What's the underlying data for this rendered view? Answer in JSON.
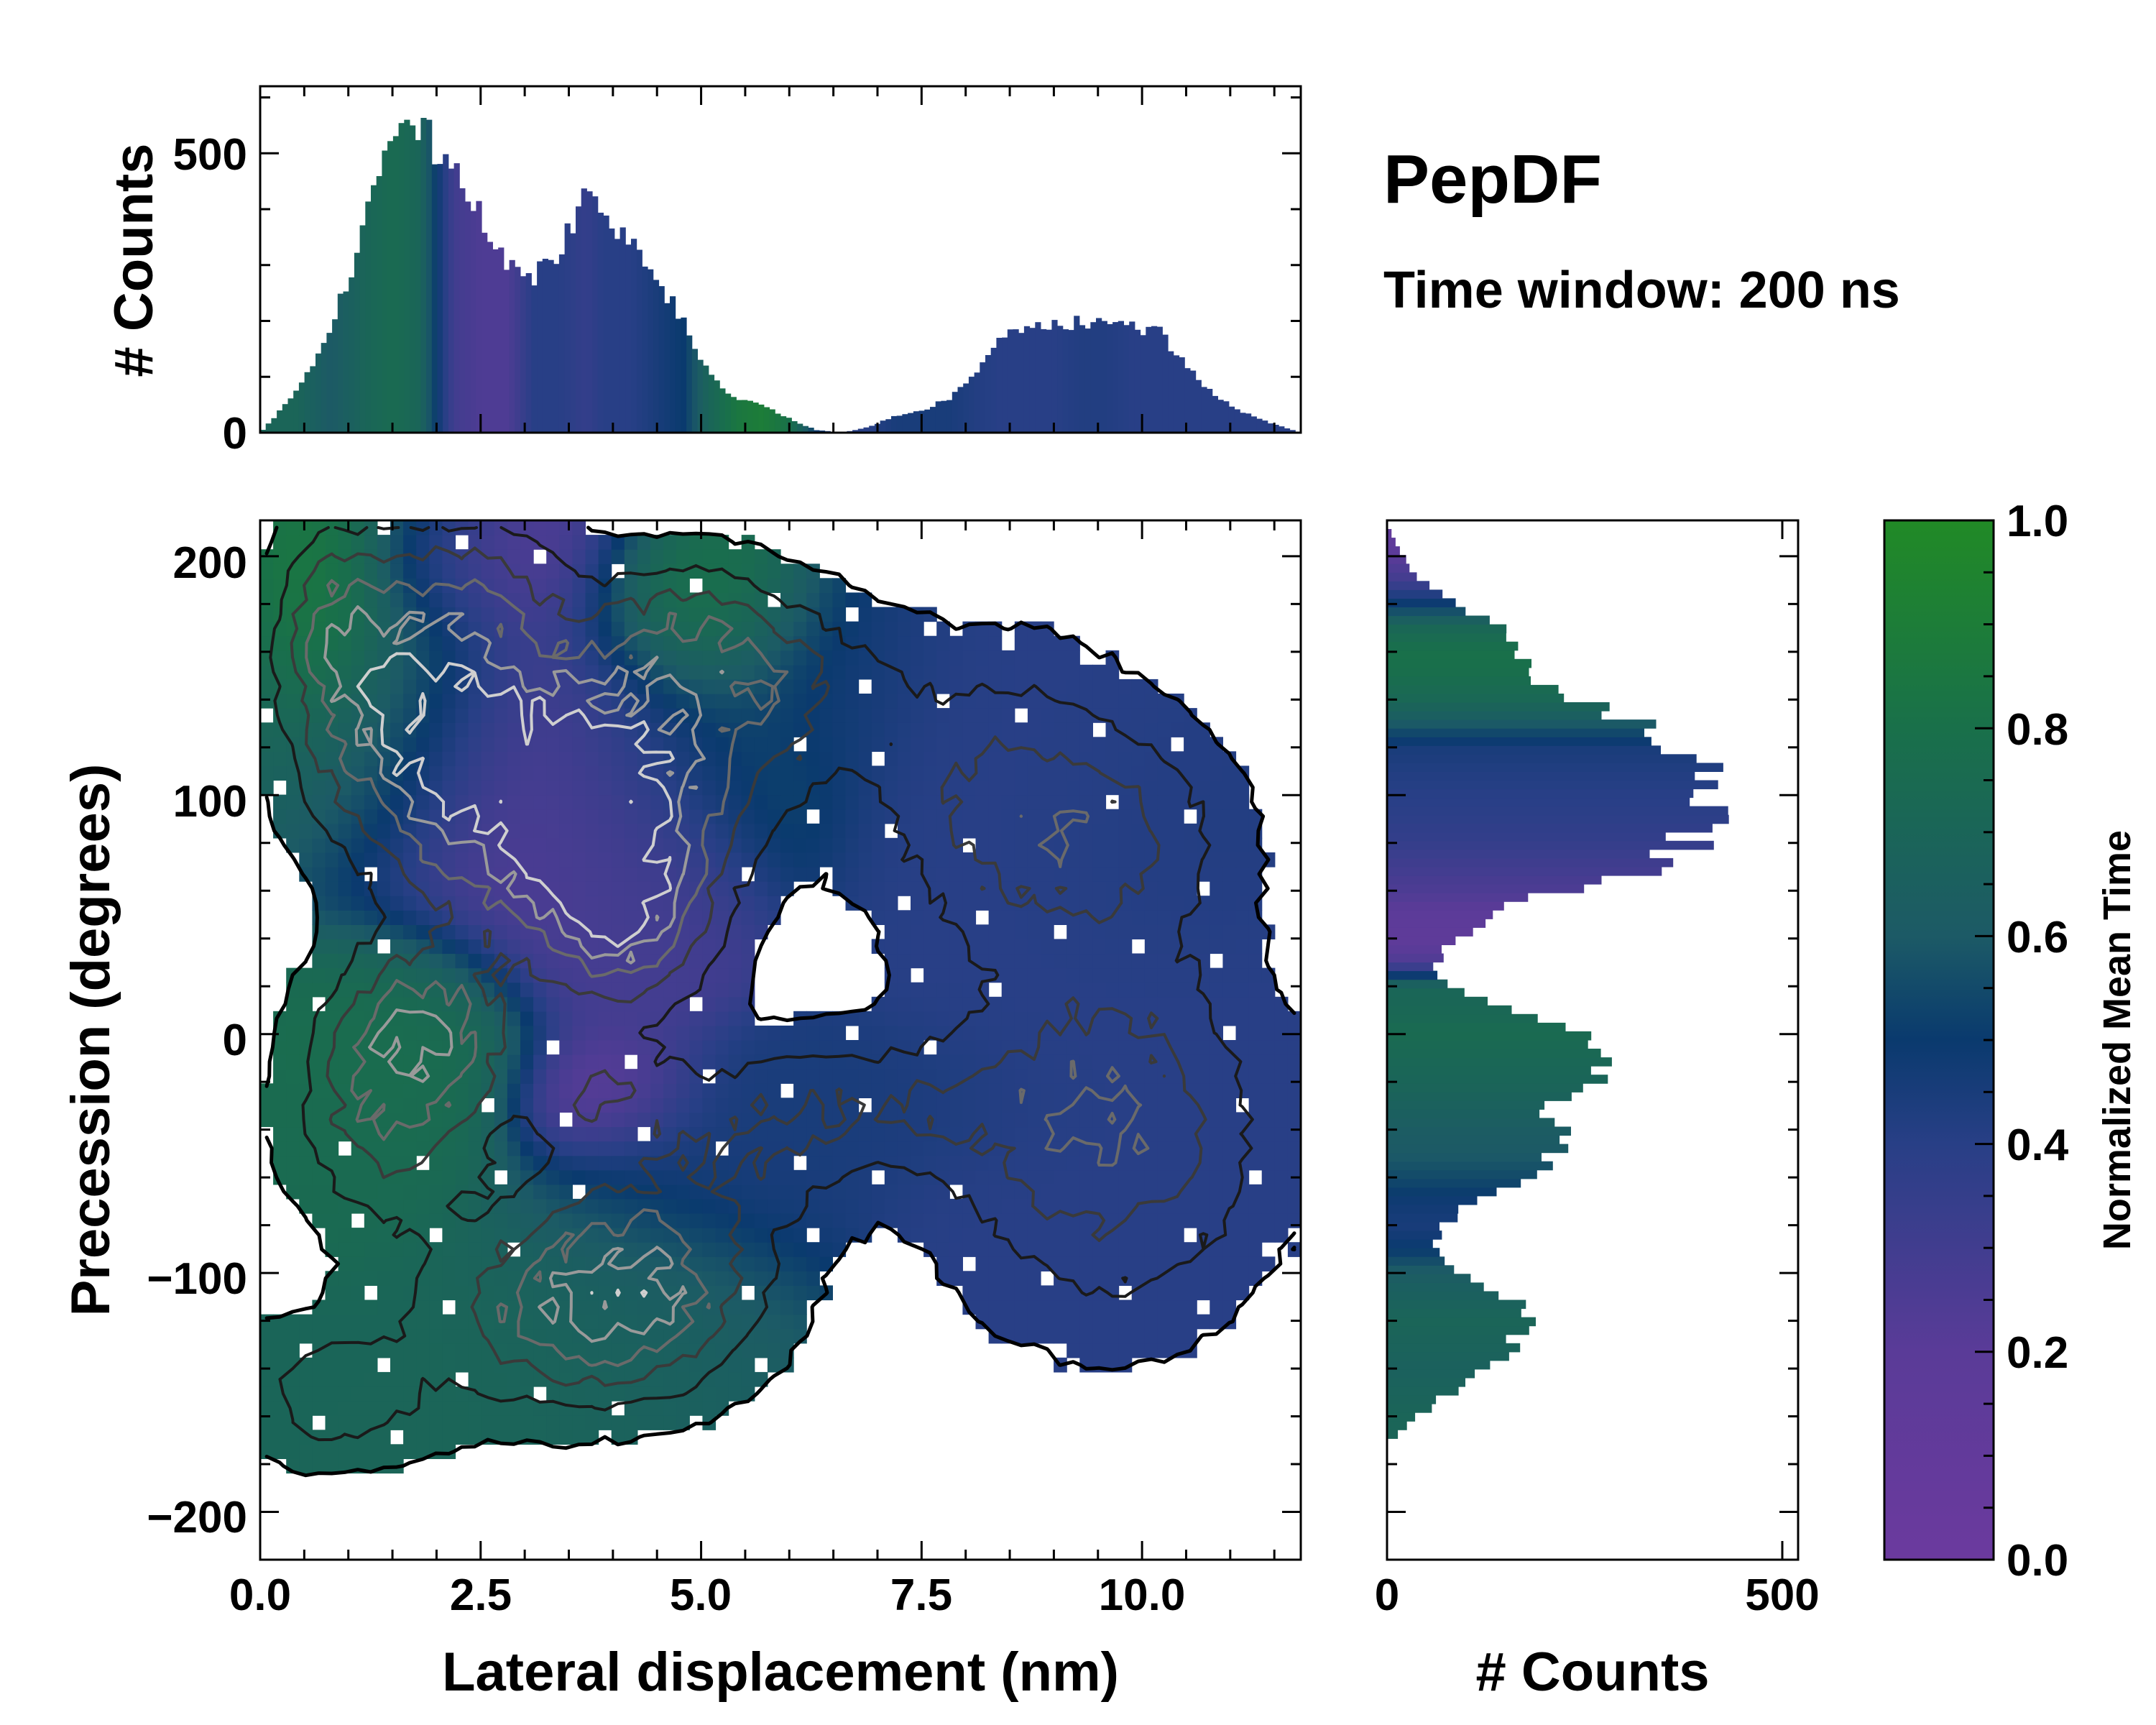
{
  "chart_data": [
    {
      "type": "heatmap",
      "name": "joint",
      "xlabel": "Lateral displacement (nm)",
      "ylabel": "Precession (degrees)",
      "xlim": [
        0.0,
        11.8
      ],
      "ylim": [
        -220,
        215
      ],
      "xticks": [
        0.0,
        2.5,
        5.0,
        7.5,
        10.0
      ],
      "xtick_labels": [
        "0.0",
        "2.5",
        "5.0",
        "7.5",
        "10.0"
      ],
      "yticks": [
        -200,
        -100,
        0,
        100,
        200
      ],
      "ytick_labels": [
        "−200",
        "−100",
        "0",
        "100",
        "200"
      ],
      "clusters": [
        {
          "x": 1.5,
          "y": 140,
          "sx": 0.8,
          "sy": 40,
          "w": 1.0,
          "t": 0.72
        },
        {
          "x": 2.6,
          "y": 110,
          "sx": 0.9,
          "sy": 45,
          "w": 0.9,
          "t": 0.22
        },
        {
          "x": 3.8,
          "y": 90,
          "sx": 0.9,
          "sy": 45,
          "w": 0.95,
          "t": 0.25
        },
        {
          "x": 4.2,
          "y": 50,
          "sx": 0.6,
          "sy": 25,
          "w": 0.8,
          "t": 0.3
        },
        {
          "x": 4.8,
          "y": 120,
          "sx": 1.0,
          "sy": 35,
          "w": 0.6,
          "t": 0.6
        },
        {
          "x": 4.9,
          "y": 170,
          "sx": 0.7,
          "sy": 20,
          "w": 0.5,
          "t": 0.92
        },
        {
          "x": 2.5,
          "y": 190,
          "sx": 0.7,
          "sy": 18,
          "w": 0.4,
          "t": 0.18
        },
        {
          "x": 0.8,
          "y": 175,
          "sx": 0.4,
          "sy": 25,
          "w": 0.5,
          "t": 0.95
        },
        {
          "x": 1.8,
          "y": 0,
          "sx": 0.7,
          "sy": 25,
          "w": 0.95,
          "t": 0.78
        },
        {
          "x": 1.4,
          "y": -40,
          "sx": 0.7,
          "sy": 30,
          "w": 0.6,
          "t": 0.75
        },
        {
          "x": 3.8,
          "y": -25,
          "sx": 0.6,
          "sy": 15,
          "w": 0.4,
          "t": 0.12
        },
        {
          "x": 4.6,
          "y": -70,
          "sx": 1.0,
          "sy": 35,
          "w": 0.5,
          "t": 0.45
        },
        {
          "x": 4.2,
          "y": -115,
          "sx": 0.9,
          "sy": 25,
          "w": 0.9,
          "t": 0.68
        },
        {
          "x": 2.8,
          "y": -115,
          "sx": 0.9,
          "sy": 30,
          "w": 0.5,
          "t": 0.7
        },
        {
          "x": 0.8,
          "y": -150,
          "sx": 0.8,
          "sy": 20,
          "w": 0.5,
          "t": 0.7
        },
        {
          "x": 6.2,
          "y": 145,
          "sx": 0.8,
          "sy": 25,
          "w": 0.45,
          "t": 0.45
        },
        {
          "x": 8.5,
          "y": 95,
          "sx": 1.0,
          "sy": 40,
          "w": 0.7,
          "t": 0.4
        },
        {
          "x": 10.0,
          "y": 80,
          "sx": 0.8,
          "sy": 30,
          "w": 0.4,
          "t": 0.42
        },
        {
          "x": 9.6,
          "y": -40,
          "sx": 1.2,
          "sy": 50,
          "w": 0.85,
          "t": 0.4
        },
        {
          "x": 7.3,
          "y": -30,
          "sx": 1.0,
          "sy": 18,
          "w": 0.45,
          "t": 0.45
        },
        {
          "x": 5.9,
          "y": -40,
          "sx": 0.7,
          "sy": 25,
          "w": 0.35,
          "t": 0.45
        }
      ]
    },
    {
      "type": "bar",
      "name": "x-marginal",
      "ylabel": "# Counts",
      "ylim": [
        0,
        620
      ],
      "yticks": [
        0,
        500
      ],
      "ytick_labels": [
        "0",
        "500"
      ],
      "x": [
        0.0,
        0.4,
        0.8,
        1.2,
        1.5,
        1.8,
        2.2,
        2.5,
        2.8,
        3.1,
        3.4,
        3.7,
        3.9,
        4.2,
        4.5,
        4.8,
        5.1,
        5.4,
        5.7,
        6.0,
        6.3,
        6.6,
        6.9,
        7.2,
        7.5,
        7.8,
        8.1,
        8.4,
        8.7,
        9.0,
        9.3,
        9.6,
        9.9,
        10.2,
        10.5,
        10.8,
        11.1,
        11.4,
        11.8
      ],
      "values": [
        0,
        70,
        180,
        380,
        540,
        560,
        460,
        390,
        300,
        280,
        330,
        420,
        400,
        340,
        270,
        200,
        100,
        60,
        50,
        25,
        5,
        0,
        10,
        30,
        40,
        60,
        110,
        170,
        185,
        190,
        200,
        200,
        190,
        180,
        120,
        70,
        40,
        20,
        0
      ],
      "mean_time": [
        0.7,
        0.7,
        0.6,
        0.7,
        0.75,
        0.7,
        0.3,
        0.25,
        0.25,
        0.4,
        0.4,
        0.35,
        0.4,
        0.4,
        0.45,
        0.5,
        0.7,
        0.85,
        0.9,
        0.8,
        0.5,
        0.4,
        0.4,
        0.45,
        0.45,
        0.45,
        0.42,
        0.4,
        0.4,
        0.4,
        0.42,
        0.42,
        0.4,
        0.4,
        0.4,
        0.4,
        0.4,
        0.4,
        0.4
      ]
    },
    {
      "type": "bar",
      "name": "y-marginal",
      "xlabel": "# Counts",
      "xlim": [
        0,
        520
      ],
      "xticks": [
        0,
        500
      ],
      "xtick_labels": [
        "0",
        "500"
      ],
      "y": [
        -170,
        -160,
        -150,
        -140,
        -130,
        -120,
        -110,
        -100,
        -90,
        -80,
        -70,
        -60,
        -50,
        -40,
        -30,
        -20,
        -10,
        0,
        10,
        20,
        30,
        40,
        50,
        60,
        70,
        80,
        90,
        100,
        110,
        120,
        130,
        140,
        150,
        160,
        170,
        180,
        190,
        200,
        210
      ],
      "values": [
        5,
        40,
        80,
        120,
        160,
        180,
        160,
        90,
        60,
        70,
        110,
        200,
        220,
        230,
        200,
        260,
        270,
        250,
        150,
        80,
        60,
        90,
        130,
        220,
        340,
        380,
        400,
        410,
        400,
        360,
        330,
        230,
        180,
        170,
        140,
        90,
        40,
        20,
        5
      ],
      "mean_time": [
        0.7,
        0.7,
        0.68,
        0.66,
        0.68,
        0.7,
        0.66,
        0.62,
        0.5,
        0.45,
        0.48,
        0.55,
        0.6,
        0.62,
        0.66,
        0.7,
        0.72,
        0.75,
        0.72,
        0.7,
        0.25,
        0.15,
        0.18,
        0.25,
        0.3,
        0.35,
        0.38,
        0.4,
        0.42,
        0.45,
        0.6,
        0.72,
        0.78,
        0.8,
        0.72,
        0.5,
        0.3,
        0.2,
        0.1
      ]
    },
    {
      "type": "colorbar",
      "name": "colorbar",
      "label": "Normalized Mean Time",
      "range": [
        0.0,
        1.0
      ],
      "ticks": [
        0.0,
        0.2,
        0.4,
        0.6,
        0.8,
        1.0
      ],
      "tick_labels": [
        "0.0",
        "0.2",
        "0.4",
        "0.6",
        "0.8",
        "1.0"
      ],
      "colormap_stops": [
        {
          "t": 0.0,
          "color": "#6b3a9e"
        },
        {
          "t": 0.2,
          "color": "#5a3b98"
        },
        {
          "t": 0.4,
          "color": "#283f86"
        },
        {
          "t": 0.5,
          "color": "#0a3a6e"
        },
        {
          "t": 0.6,
          "color": "#1c5a66"
        },
        {
          "t": 0.8,
          "color": "#19704a"
        },
        {
          "t": 1.0,
          "color": "#218a26"
        }
      ]
    }
  ],
  "title": "PepDF",
  "subtitle": "Time window: 200 ns"
}
